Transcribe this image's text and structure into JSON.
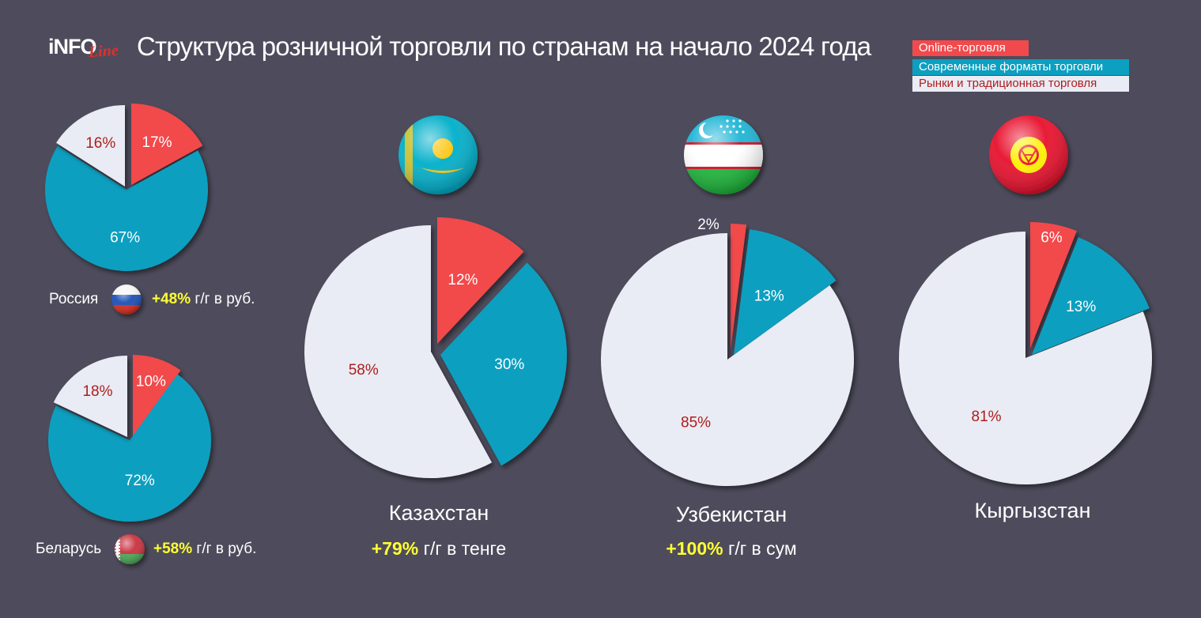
{
  "header": {
    "logo_info": "iNFO",
    "logo_line": "Line",
    "title": "Структура розничной торговли по странам на начало 2024 года"
  },
  "legend": {
    "online": "Online-торговля",
    "modern": "Современные форматы торговли",
    "markets": "Рынки и традиционная торговля"
  },
  "colors": {
    "online": "#f24a4c",
    "modern": "#0c9fc0",
    "markets": "#e9ecf4",
    "label_light": "#ffffff",
    "label_dark": "#b01c1c",
    "growth_highlight": "#ffff33",
    "background": "#4e4c5c"
  },
  "countries": {
    "russia": {
      "name": "Россия",
      "growth_value": "+48%",
      "growth_text": " г/г в руб.",
      "flag_icon": "russia-flag-icon"
    },
    "belarus": {
      "name": "Беларусь",
      "growth_value": "+58%",
      "growth_text": " г/г в руб.",
      "flag_icon": "belarus-flag-icon"
    },
    "kazakhstan": {
      "name": "Казахстан",
      "growth_value": "+79%",
      "growth_text": " г/г в тенге",
      "flag_icon": "kazakhstan-flag-icon"
    },
    "uzbekistan": {
      "name": "Узбекистан",
      "growth_value": "+100%",
      "growth_text": " г/г в сум",
      "flag_icon": "uzbekistan-flag-icon"
    },
    "kyrgyzstan": {
      "name": "Кыргызстан",
      "growth_value": "",
      "growth_text": "",
      "flag_icon": "kyrgyzstan-flag-icon"
    }
  },
  "chart_data": [
    {
      "type": "pie",
      "country": "Россия",
      "slices": [
        {
          "category": "Online-торговля",
          "value": 17,
          "label": "17%"
        },
        {
          "category": "Современные форматы торговли",
          "value": 67,
          "label": "67%"
        },
        {
          "category": "Рынки и традиционная торговля",
          "value": 16,
          "label": "16%"
        }
      ]
    },
    {
      "type": "pie",
      "country": "Беларусь",
      "slices": [
        {
          "category": "Online-торговля",
          "value": 10,
          "label": "10%"
        },
        {
          "category": "Современные форматы торговли",
          "value": 72,
          "label": "72%"
        },
        {
          "category": "Рынки и традиционная торговля",
          "value": 18,
          "label": "18%"
        }
      ]
    },
    {
      "type": "pie",
      "country": "Казахстан",
      "slices": [
        {
          "category": "Online-торговля",
          "value": 12,
          "label": "12%"
        },
        {
          "category": "Современные форматы торговли",
          "value": 30,
          "label": "30%"
        },
        {
          "category": "Рынки и традиционная торговля",
          "value": 58,
          "label": "58%"
        }
      ]
    },
    {
      "type": "pie",
      "country": "Узбекистан",
      "slices": [
        {
          "category": "Online-торговля",
          "value": 2,
          "label": "2%"
        },
        {
          "category": "Современные форматы торговли",
          "value": 13,
          "label": "13%"
        },
        {
          "category": "Рынки и традиционная торговля",
          "value": 85,
          "label": "85%"
        }
      ]
    },
    {
      "type": "pie",
      "country": "Кыргызстан",
      "slices": [
        {
          "category": "Online-торговля",
          "value": 6,
          "label": "6%"
        },
        {
          "category": "Современные форматы торговли",
          "value": 13,
          "label": "13%"
        },
        {
          "category": "Рынки и традиционная торговля",
          "value": 81,
          "label": "81%"
        }
      ]
    }
  ]
}
